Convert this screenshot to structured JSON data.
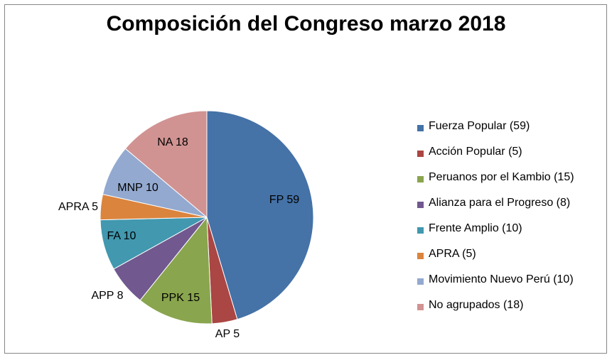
{
  "chart_data": {
    "type": "pie",
    "title": "Composición del Congreso marzo 2018",
    "start_angle_deg": 0,
    "direction": "clockwise",
    "legend_position": "right",
    "slices": [
      {
        "name": "Fuerza Popular (59)",
        "short": "FP",
        "value": 59,
        "label": "FP 59",
        "color": "#4572A7"
      },
      {
        "name": "Acción Popular (5)",
        "short": "AP",
        "value": 5,
        "label": "AP 5",
        "color": "#AA4643"
      },
      {
        "name": "Peruanos por el Kambio (15)",
        "short": "PPK",
        "value": 15,
        "label": "PPK 15",
        "color": "#89A54E"
      },
      {
        "name": "Alianza para el Progreso (8)",
        "short": "APP",
        "value": 8,
        "label": "APP 8",
        "color": "#71588F"
      },
      {
        "name": "Frente Amplio (10)",
        "short": "FA",
        "value": 10,
        "label": "FA 10",
        "color": "#4198AF"
      },
      {
        "name": "APRA (5)",
        "short": "APRA",
        "value": 5,
        "label": "APRA 5",
        "color": "#DB843D"
      },
      {
        "name": "Movimiento Nuevo Perú (10)",
        "short": "MNP",
        "value": 10,
        "label": "MNP 10",
        "color": "#93A9CF"
      },
      {
        "name": "No agrupados (18)",
        "short": "NA",
        "value": 18,
        "label": "NA 18",
        "color": "#D19392"
      }
    ]
  }
}
